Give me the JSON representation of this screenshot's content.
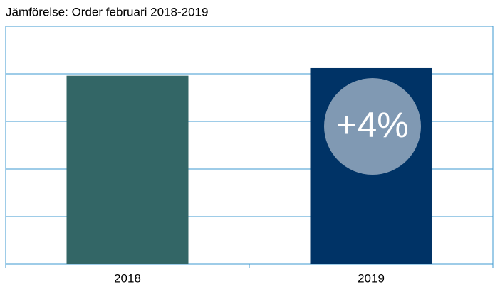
{
  "chart_data": {
    "type": "bar",
    "title": "Jämförelse: Order februari 2018-2019",
    "categories": [
      "2018",
      "2019"
    ],
    "values": [
      3.96,
      4.12
    ],
    "colors": [
      "#336666",
      "#003366"
    ],
    "ylim": [
      0,
      5
    ],
    "yticks": [
      0,
      1,
      2,
      3,
      4,
      5
    ],
    "grid": true,
    "annotation": "+4%"
  }
}
